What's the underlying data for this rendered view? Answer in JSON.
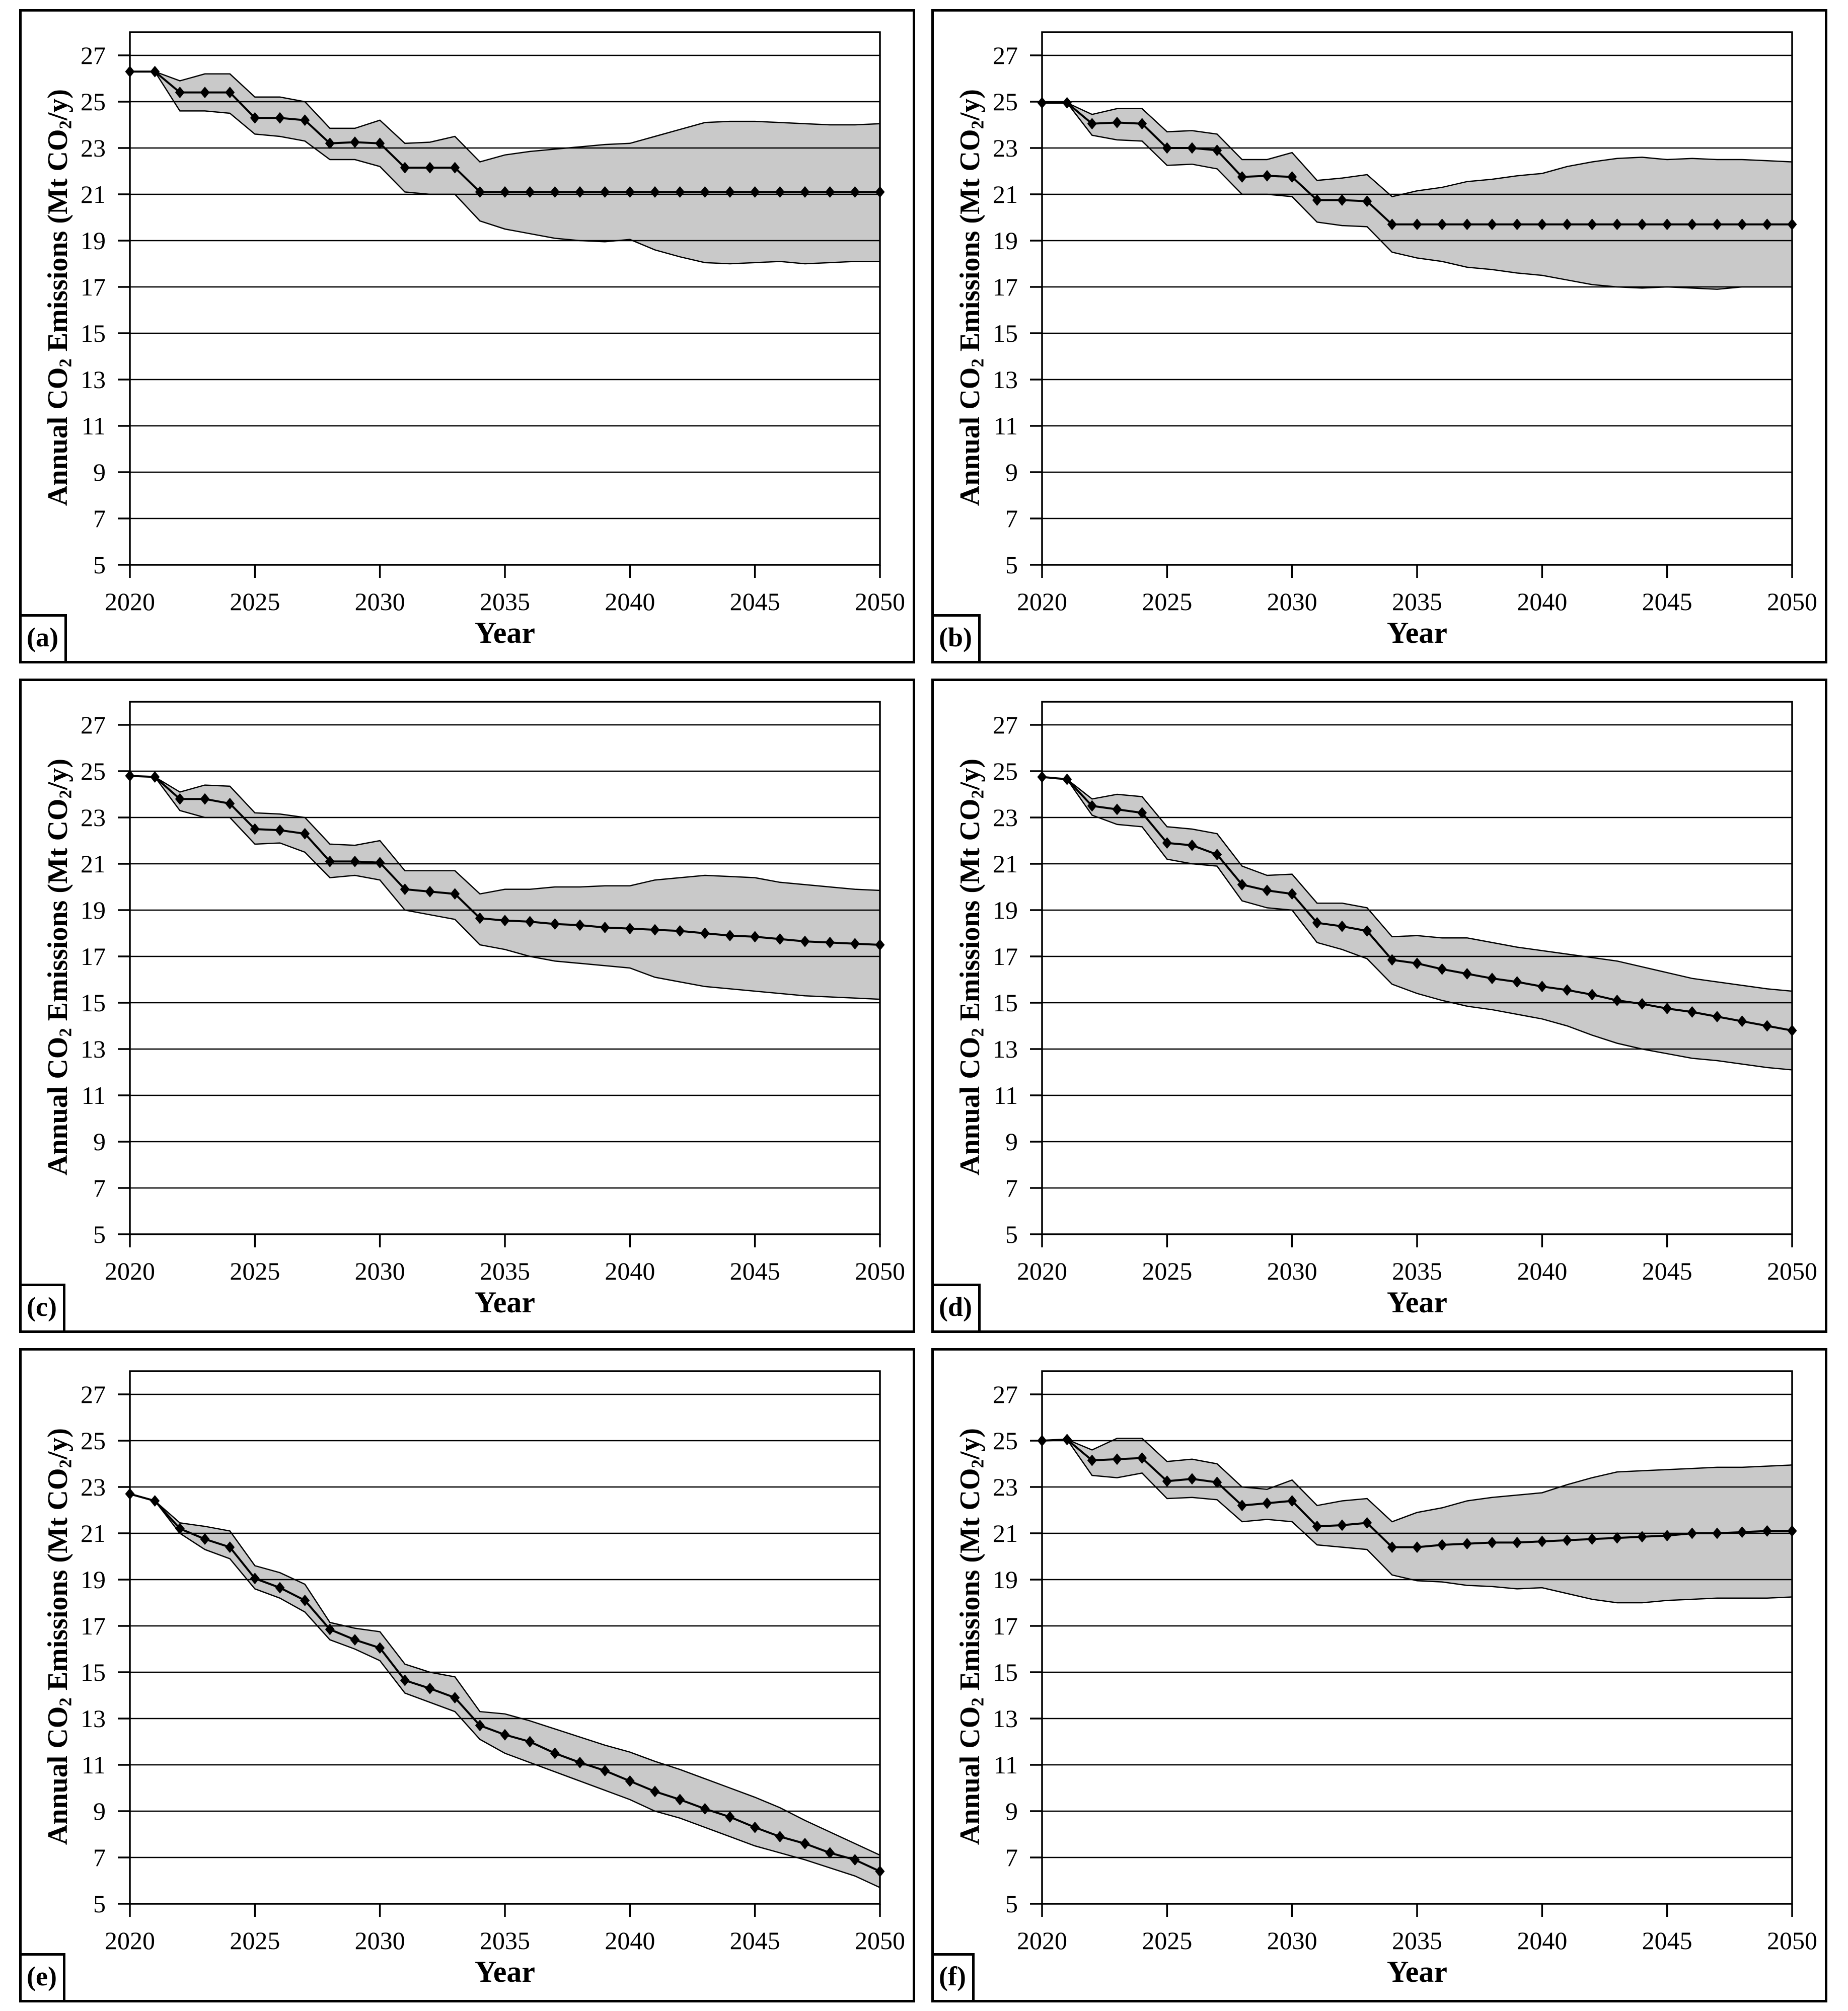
{
  "figure": {
    "y_axis_label_parts": {
      "pre": "Annual CO",
      "sub1": "2",
      "mid": " Emissions (Mt CO",
      "sub2": "2",
      "post": "/y)"
    },
    "x_axis_label": "Year",
    "ink_color": "#000000",
    "band_color": "#c9c9c9",
    "background_color": "#ffffff"
  },
  "axes": {
    "x_range": [
      2020,
      2050
    ],
    "y_range": [
      5,
      28
    ],
    "x_ticks": [
      2020,
      2025,
      2030,
      2035,
      2040,
      2045,
      2050
    ],
    "y_ticks": [
      5,
      7,
      9,
      11,
      13,
      15,
      17,
      19,
      21,
      23,
      25,
      27
    ],
    "grid": "horizontal-only",
    "years": [
      2020,
      2021,
      2022,
      2023,
      2024,
      2025,
      2026,
      2027,
      2028,
      2029,
      2030,
      2031,
      2032,
      2033,
      2034,
      2035,
      2036,
      2037,
      2038,
      2039,
      2040,
      2041,
      2042,
      2043,
      2044,
      2045,
      2046,
      2047,
      2048,
      2049,
      2050
    ]
  },
  "chart_data": [
    {
      "panel": "(a)",
      "type": "line",
      "xlabel": "Year",
      "ylabel": "Annual CO2 Emissions (Mt CO2/y)",
      "ylim": [
        5,
        28
      ],
      "legend": "none",
      "series": [
        {
          "name": "median",
          "marker": "diamond",
          "values": [
            26.3,
            26.3,
            25.4,
            25.4,
            25.4,
            24.3,
            24.3,
            24.2,
            23.2,
            23.25,
            23.2,
            22.15,
            22.15,
            22.15,
            21.1,
            21.1,
            21.1,
            21.1,
            21.1,
            21.1,
            21.1,
            21.1,
            21.1,
            21.1,
            21.1,
            21.1,
            21.1,
            21.1,
            21.1,
            21.1,
            21.1
          ]
        },
        {
          "name": "upper-bound",
          "marker": "none",
          "values": [
            26.3,
            26.3,
            25.9,
            26.2,
            26.2,
            25.2,
            25.2,
            25.0,
            23.85,
            23.85,
            24.2,
            23.2,
            23.25,
            23.5,
            22.4,
            22.7,
            22.85,
            22.95,
            23.05,
            23.15,
            23.2,
            23.5,
            23.8,
            24.1,
            24.15,
            24.15,
            24.1,
            24.05,
            24.0,
            24.0,
            24.05
          ]
        },
        {
          "name": "lower-bound",
          "marker": "none",
          "values": [
            26.3,
            26.3,
            24.6,
            24.6,
            24.5,
            23.6,
            23.5,
            23.3,
            22.5,
            22.5,
            22.2,
            21.1,
            21.0,
            21.0,
            19.85,
            19.5,
            19.3,
            19.1,
            19.0,
            18.95,
            19.05,
            18.6,
            18.3,
            18.05,
            18.0,
            18.05,
            18.1,
            18.0,
            18.05,
            18.1,
            18.1
          ]
        }
      ]
    },
    {
      "panel": "(b)",
      "type": "line",
      "xlabel": "Year",
      "ylabel": "Annual CO2 Emissions (Mt CO2/y)",
      "ylim": [
        5,
        28
      ],
      "legend": "none",
      "series": [
        {
          "name": "median",
          "marker": "diamond",
          "values": [
            24.95,
            24.95,
            24.05,
            24.1,
            24.05,
            23.0,
            23.0,
            22.9,
            21.75,
            21.8,
            21.75,
            20.75,
            20.75,
            20.7,
            19.7,
            19.7,
            19.7,
            19.7,
            19.7,
            19.7,
            19.7,
            19.7,
            19.7,
            19.7,
            19.7,
            19.7,
            19.7,
            19.7,
            19.7,
            19.7,
            19.7
          ]
        },
        {
          "name": "upper-bound",
          "marker": "none",
          "values": [
            24.95,
            24.95,
            24.45,
            24.7,
            24.7,
            23.7,
            23.75,
            23.6,
            22.5,
            22.5,
            22.8,
            21.6,
            21.7,
            21.85,
            20.9,
            21.15,
            21.3,
            21.55,
            21.65,
            21.8,
            21.9,
            22.2,
            22.4,
            22.55,
            22.6,
            22.5,
            22.55,
            22.5,
            22.5,
            22.45,
            22.4
          ]
        },
        {
          "name": "lower-bound",
          "marker": "none",
          "values": [
            24.95,
            24.95,
            23.55,
            23.35,
            23.3,
            22.25,
            22.3,
            22.1,
            21.0,
            21.0,
            20.9,
            19.8,
            19.65,
            19.6,
            18.5,
            18.25,
            18.1,
            17.85,
            17.75,
            17.6,
            17.5,
            17.3,
            17.1,
            17.0,
            16.95,
            17.0,
            16.95,
            16.9,
            17.0,
            17.0,
            17.0
          ]
        }
      ]
    },
    {
      "panel": "(c)",
      "type": "line",
      "xlabel": "Year",
      "ylabel": "Annual CO2 Emissions (Mt CO2/y)",
      "ylim": [
        5,
        28
      ],
      "legend": "none",
      "series": [
        {
          "name": "median",
          "marker": "diamond",
          "values": [
            24.8,
            24.75,
            23.8,
            23.8,
            23.6,
            22.5,
            22.45,
            22.3,
            21.1,
            21.1,
            21.05,
            19.9,
            19.8,
            19.7,
            18.65,
            18.55,
            18.5,
            18.4,
            18.35,
            18.25,
            18.2,
            18.15,
            18.1,
            18.0,
            17.9,
            17.85,
            17.75,
            17.65,
            17.6,
            17.55,
            17.5
          ]
        },
        {
          "name": "upper-bound",
          "marker": "none",
          "values": [
            24.8,
            24.75,
            24.1,
            24.4,
            24.35,
            23.2,
            23.15,
            23.0,
            21.85,
            21.8,
            22.0,
            20.7,
            20.7,
            20.7,
            19.7,
            19.9,
            19.9,
            20.0,
            20.0,
            20.05,
            20.05,
            20.3,
            20.4,
            20.5,
            20.45,
            20.4,
            20.2,
            20.1,
            20.0,
            19.9,
            19.85
          ]
        },
        {
          "name": "lower-bound",
          "marker": "none",
          "values": [
            24.8,
            24.75,
            23.3,
            23.0,
            23.0,
            21.85,
            21.9,
            21.5,
            20.4,
            20.5,
            20.3,
            19.0,
            18.8,
            18.6,
            17.5,
            17.3,
            17.0,
            16.8,
            16.7,
            16.6,
            16.5,
            16.1,
            15.9,
            15.7,
            15.6,
            15.5,
            15.4,
            15.3,
            15.25,
            15.2,
            15.15
          ]
        }
      ]
    },
    {
      "panel": "(d)",
      "type": "line",
      "xlabel": "Year",
      "ylabel": "Annual CO2 Emissions (Mt CO2/y)",
      "ylim": [
        5,
        28
      ],
      "legend": "none",
      "series": [
        {
          "name": "median",
          "marker": "diamond",
          "values": [
            24.75,
            24.65,
            23.5,
            23.35,
            23.2,
            21.9,
            21.8,
            21.4,
            20.1,
            19.85,
            19.7,
            18.45,
            18.3,
            18.1,
            16.85,
            16.7,
            16.45,
            16.25,
            16.05,
            15.9,
            15.7,
            15.55,
            15.35,
            15.1,
            14.95,
            14.75,
            14.6,
            14.4,
            14.2,
            14.0,
            13.8
          ]
        },
        {
          "name": "upper-bound",
          "marker": "none",
          "values": [
            24.75,
            24.65,
            23.8,
            24.0,
            23.9,
            22.6,
            22.5,
            22.3,
            20.9,
            20.5,
            20.55,
            19.3,
            19.3,
            19.1,
            17.85,
            17.9,
            17.8,
            17.8,
            17.6,
            17.4,
            17.25,
            17.1,
            16.95,
            16.8,
            16.55,
            16.3,
            16.05,
            15.9,
            15.75,
            15.6,
            15.5
          ]
        },
        {
          "name": "lower-bound",
          "marker": "none",
          "values": [
            24.75,
            24.65,
            23.1,
            22.7,
            22.6,
            21.2,
            21.0,
            20.9,
            19.4,
            19.1,
            19.0,
            17.6,
            17.3,
            16.9,
            15.8,
            15.4,
            15.1,
            14.85,
            14.7,
            14.5,
            14.3,
            14.0,
            13.6,
            13.25,
            13.0,
            12.8,
            12.6,
            12.5,
            12.35,
            12.2,
            12.1
          ]
        }
      ]
    },
    {
      "panel": "(e)",
      "type": "line",
      "xlabel": "Year",
      "ylabel": "Annual CO2 Emissions (Mt CO2/y)",
      "ylim": [
        5,
        28
      ],
      "legend": "none",
      "series": [
        {
          "name": "median",
          "marker": "diamond",
          "values": [
            22.7,
            22.4,
            21.2,
            20.75,
            20.4,
            19.05,
            18.65,
            18.1,
            16.85,
            16.4,
            16.05,
            14.65,
            14.3,
            13.9,
            12.7,
            12.3,
            12.0,
            11.5,
            11.1,
            10.75,
            10.3,
            9.85,
            9.5,
            9.1,
            8.75,
            8.3,
            7.9,
            7.6,
            7.2,
            6.9,
            6.4
          ]
        },
        {
          "name": "upper-bound",
          "marker": "none",
          "values": [
            22.7,
            22.4,
            21.45,
            21.3,
            21.1,
            19.6,
            19.3,
            18.8,
            17.15,
            16.9,
            16.75,
            15.35,
            15.0,
            14.8,
            13.3,
            13.2,
            12.9,
            12.55,
            12.2,
            11.85,
            11.55,
            11.15,
            10.8,
            10.4,
            10.0,
            9.6,
            9.15,
            8.6,
            8.1,
            7.6,
            7.1
          ]
        },
        {
          "name": "lower-bound",
          "marker": "none",
          "values": [
            22.7,
            22.4,
            21.0,
            20.3,
            19.9,
            18.6,
            18.2,
            17.6,
            16.4,
            16.0,
            15.5,
            14.1,
            13.7,
            13.3,
            12.1,
            11.5,
            11.1,
            10.7,
            10.3,
            9.9,
            9.5,
            9.0,
            8.7,
            8.3,
            7.9,
            7.5,
            7.2,
            6.9,
            6.55,
            6.2,
            5.7
          ]
        }
      ]
    },
    {
      "panel": "(f)",
      "type": "line",
      "xlabel": "Year",
      "ylabel": "Annual CO2 Emissions (Mt CO2/y)",
      "ylim": [
        5,
        28
      ],
      "legend": "none",
      "series": [
        {
          "name": "median",
          "marker": "diamond",
          "values": [
            25.0,
            25.05,
            24.15,
            24.2,
            24.25,
            23.25,
            23.35,
            23.2,
            22.2,
            22.3,
            22.4,
            21.3,
            21.35,
            21.45,
            20.4,
            20.4,
            20.5,
            20.55,
            20.6,
            20.6,
            20.65,
            20.7,
            20.75,
            20.8,
            20.85,
            20.9,
            21.0,
            21.0,
            21.05,
            21.1,
            21.1
          ]
        },
        {
          "name": "upper-bound",
          "marker": "none",
          "values": [
            25.0,
            25.05,
            24.6,
            25.1,
            25.1,
            24.1,
            24.2,
            24.0,
            23.0,
            22.9,
            23.3,
            22.2,
            22.4,
            22.5,
            21.5,
            21.9,
            22.1,
            22.4,
            22.55,
            22.65,
            22.75,
            23.1,
            23.4,
            23.65,
            23.7,
            23.75,
            23.8,
            23.85,
            23.85,
            23.9,
            23.95
          ]
        },
        {
          "name": "lower-bound",
          "marker": "none",
          "values": [
            25.0,
            25.05,
            23.5,
            23.4,
            23.6,
            22.5,
            22.55,
            22.45,
            21.5,
            21.6,
            21.5,
            20.5,
            20.4,
            20.3,
            19.2,
            18.95,
            18.9,
            18.75,
            18.7,
            18.6,
            18.65,
            18.4,
            18.15,
            18.0,
            18.0,
            18.1,
            18.15,
            18.2,
            18.2,
            18.2,
            18.25
          ]
        }
      ]
    }
  ]
}
